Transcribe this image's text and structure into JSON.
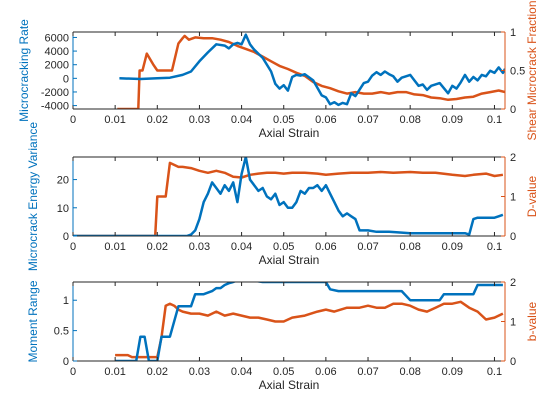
{
  "colors": {
    "left": "#0072BD",
    "right": "#D95319",
    "axis": "#262626",
    "background": "#ffffff"
  },
  "chart_data": [
    {
      "type": "line",
      "xlabel": "Axial Strain",
      "ylabel_left": "Microcracking Rate",
      "ylabel_right": "Shear Microcrack Fraction",
      "xlim": [
        0,
        0.1025
      ],
      "ylim_left": [
        -4500,
        6800
      ],
      "ylim_right": [
        0,
        1
      ],
      "xticks": [
        "0",
        "0.01",
        "0.02",
        "0.03",
        "0.04",
        "0.05",
        "0.06",
        "0.07",
        "0.08",
        "0.09",
        "0.1"
      ],
      "xtick_values": [
        0,
        0.01,
        0.02,
        0.03,
        0.04,
        0.05,
        0.06,
        0.07,
        0.08,
        0.09,
        0.1
      ],
      "yticks_left": [
        "-4000",
        "-2000",
        "0",
        "2000",
        "4000",
        "6000"
      ],
      "ytick_values_left": [
        -4000,
        -2000,
        0,
        2000,
        4000,
        6000
      ],
      "yticks_right": [
        "0",
        "0.5",
        "1"
      ],
      "ytick_values_right": [
        0,
        0.5,
        1
      ],
      "grid": false,
      "series": [
        {
          "axis": "left",
          "x": [
            0.011,
            0.016,
            0.02,
            0.023,
            0.026,
            0.028,
            0.03,
            0.032,
            0.034,
            0.036,
            0.037,
            0.038,
            0.039,
            0.04,
            0.041,
            0.042,
            0.043,
            0.045,
            0.047,
            0.048,
            0.049,
            0.05,
            0.051,
            0.052,
            0.053,
            0.054,
            0.055,
            0.057,
            0.059,
            0.06,
            0.061,
            0.062,
            0.063,
            0.064,
            0.065,
            0.066,
            0.067,
            0.069,
            0.07,
            0.071,
            0.072,
            0.073,
            0.074,
            0.075,
            0.076,
            0.077,
            0.078,
            0.079,
            0.08,
            0.081,
            0.082,
            0.083,
            0.084,
            0.085,
            0.087,
            0.089,
            0.09,
            0.091,
            0.092,
            0.093,
            0.094,
            0.095,
            0.096,
            0.097,
            0.098,
            0.099,
            0.1,
            0.101,
            0.102,
            0.1025
          ],
          "y": [
            0,
            -100,
            0,
            100,
            500,
            1000,
            2500,
            3800,
            5000,
            4800,
            4400,
            5000,
            5200,
            5000,
            6400,
            5000,
            4200,
            3000,
            1000,
            -800,
            -1500,
            -1000,
            -1800,
            200,
            500,
            400,
            600,
            -300,
            -2500,
            -2800,
            -3800,
            -3500,
            -3900,
            -3600,
            -3800,
            -2200,
            -2600,
            -700,
            -500,
            400,
            900,
            500,
            1000,
            600,
            300,
            -500,
            100,
            300,
            500,
            -300,
            -1100,
            -900,
            -1700,
            -1100,
            -700,
            -2200,
            -1100,
            -1500,
            -600,
            500,
            -500,
            200,
            -300,
            500,
            300,
            1100,
            800,
            1600,
            800,
            1400
          ]
        },
        {
          "axis": "right",
          "x": [
            0.0105,
            0.0155,
            0.0158,
            0.0165,
            0.0175,
            0.019,
            0.02,
            0.0215,
            0.0225,
            0.0235,
            0.025,
            0.026,
            0.0265,
            0.0275,
            0.029,
            0.031,
            0.033,
            0.035,
            0.037,
            0.039,
            0.041,
            0.043,
            0.045,
            0.047,
            0.049,
            0.051,
            0.053,
            0.055,
            0.057,
            0.059,
            0.061,
            0.063,
            0.065,
            0.067,
            0.069,
            0.071,
            0.073,
            0.075,
            0.077,
            0.079,
            0.081,
            0.083,
            0.085,
            0.087,
            0.089,
            0.091,
            0.093,
            0.095,
            0.097,
            0.099,
            0.101,
            0.1025
          ],
          "y": [
            0.0,
            0.0,
            0.5,
            0.5,
            0.72,
            0.58,
            0.5,
            0.5,
            0.5,
            0.5,
            0.85,
            0.92,
            0.95,
            0.9,
            0.93,
            0.92,
            0.92,
            0.9,
            0.87,
            0.82,
            0.78,
            0.74,
            0.68,
            0.62,
            0.56,
            0.52,
            0.47,
            0.43,
            0.35,
            0.3,
            0.27,
            0.23,
            0.2,
            0.22,
            0.2,
            0.2,
            0.22,
            0.2,
            0.22,
            0.22,
            0.19,
            0.18,
            0.15,
            0.14,
            0.12,
            0.13,
            0.15,
            0.16,
            0.2,
            0.22,
            0.24,
            0.22
          ]
        }
      ]
    },
    {
      "type": "line",
      "xlabel": "Axial Strain",
      "ylabel_left": "Microcrack Energy Variance",
      "ylabel_right": "D-value",
      "xlim": [
        0,
        0.1025
      ],
      "ylim_left": [
        0,
        28
      ],
      "ylim_right": [
        0,
        2
      ],
      "xticks": [
        "0",
        "0.01",
        "0.02",
        "0.03",
        "0.04",
        "0.05",
        "0.06",
        "0.07",
        "0.08",
        "0.09",
        "0.1"
      ],
      "xtick_values": [
        0,
        0.01,
        0.02,
        0.03,
        0.04,
        0.05,
        0.06,
        0.07,
        0.08,
        0.09,
        0.1
      ],
      "yticks_left": [
        "0",
        "10",
        "20"
      ],
      "ytick_values_left": [
        0,
        10,
        20
      ],
      "yticks_right": [
        "0",
        "1",
        "2"
      ],
      "ytick_values_right": [
        0,
        1,
        2
      ],
      "grid": false,
      "series": [
        {
          "axis": "left",
          "x": [
            0.0,
            0.027,
            0.028,
            0.029,
            0.03,
            0.031,
            0.032,
            0.033,
            0.034,
            0.035,
            0.036,
            0.037,
            0.038,
            0.039,
            0.04,
            0.041,
            0.042,
            0.043,
            0.044,
            0.045,
            0.046,
            0.047,
            0.048,
            0.049,
            0.05,
            0.051,
            0.052,
            0.053,
            0.054,
            0.055,
            0.056,
            0.057,
            0.058,
            0.059,
            0.06,
            0.061,
            0.062,
            0.063,
            0.064,
            0.065,
            0.066,
            0.067,
            0.068,
            0.07,
            0.072,
            0.075,
            0.078,
            0.08,
            0.085,
            0.09,
            0.092,
            0.093,
            0.094,
            0.095,
            0.096,
            0.097,
            0.098,
            0.099,
            0.1,
            0.101,
            0.102
          ],
          "y": [
            0.0,
            0.0,
            0.5,
            2.0,
            6.0,
            12.0,
            15.0,
            19.0,
            17.0,
            15.0,
            18.0,
            16.0,
            19.0,
            12.0,
            22.0,
            28.0,
            20.0,
            18.0,
            16.0,
            17.0,
            14.0,
            13.0,
            15.0,
            11.0,
            12.0,
            10.0,
            10.0,
            12.0,
            16.0,
            15.0,
            17.0,
            17.0,
            18.0,
            16.0,
            18.0,
            15.0,
            12.0,
            9.0,
            7.0,
            8.0,
            7.0,
            6.0,
            2.0,
            2.0,
            1.5,
            1.5,
            1.2,
            1.0,
            1.0,
            1.0,
            1.0,
            1.0,
            0.5,
            6.0,
            6.5,
            6.5,
            6.5,
            6.5,
            6.5,
            7.0,
            7.5
          ]
        },
        {
          "axis": "right",
          "x": [
            0.0,
            0.0195,
            0.02,
            0.021,
            0.022,
            0.023,
            0.024,
            0.025,
            0.026,
            0.028,
            0.03,
            0.032,
            0.034,
            0.036,
            0.038,
            0.04,
            0.042,
            0.044,
            0.046,
            0.048,
            0.05,
            0.052,
            0.055,
            0.058,
            0.06,
            0.063,
            0.066,
            0.07,
            0.073,
            0.076,
            0.08,
            0.083,
            0.086,
            0.09,
            0.093,
            0.095,
            0.098,
            0.1,
            0.102
          ],
          "y": [
            0.0,
            0.0,
            1.0,
            1.0,
            1.0,
            1.85,
            1.8,
            1.75,
            1.75,
            1.72,
            1.65,
            1.6,
            1.65,
            1.6,
            1.5,
            1.48,
            1.55,
            1.58,
            1.6,
            1.6,
            1.58,
            1.6,
            1.6,
            1.58,
            1.55,
            1.58,
            1.6,
            1.6,
            1.62,
            1.6,
            1.62,
            1.6,
            1.6,
            1.55,
            1.52,
            1.55,
            1.58,
            1.52,
            1.55
          ]
        }
      ]
    },
    {
      "type": "line",
      "xlabel": "Axial Strain",
      "ylabel_left": "Moment Range",
      "ylabel_right": "b-value",
      "xlim": [
        0,
        0.1025
      ],
      "ylim_left": [
        0,
        1.3
      ],
      "ylim_right": [
        0,
        2
      ],
      "xticks": [
        "0",
        "0.01",
        "0.02",
        "0.03",
        "0.04",
        "0.05",
        "0.06",
        "0.07",
        "0.08",
        "0.09",
        "0.1"
      ],
      "xtick_values": [
        0,
        0.01,
        0.02,
        0.03,
        0.04,
        0.05,
        0.06,
        0.07,
        0.08,
        0.09,
        0.1
      ],
      "yticks_left": [
        "0",
        "0.5",
        "1"
      ],
      "ytick_values_left": [
        0,
        0.5,
        1
      ],
      "yticks_right": [
        "0",
        "1",
        "2"
      ],
      "ytick_values_right": [
        0,
        1,
        2
      ],
      "grid": false,
      "series": [
        {
          "axis": "left",
          "x": [
            0.01,
            0.015,
            0.016,
            0.017,
            0.018,
            0.019,
            0.02,
            0.021,
            0.022,
            0.023,
            0.025,
            0.026,
            0.027,
            0.028,
            0.029,
            0.03,
            0.031,
            0.033,
            0.034,
            0.035,
            0.036,
            0.037,
            0.038,
            0.04,
            0.045,
            0.05,
            0.057,
            0.06,
            0.061,
            0.063,
            0.065,
            0.07,
            0.072,
            0.075,
            0.078,
            0.08,
            0.083,
            0.085,
            0.087,
            0.088,
            0.09,
            0.093,
            0.095,
            0.096,
            0.1,
            0.102
          ],
          "y": [
            0.0,
            0.0,
            0.4,
            0.4,
            0.0,
            0.0,
            0.0,
            0.4,
            0.4,
            0.4,
            0.9,
            0.9,
            0.9,
            0.9,
            1.1,
            1.1,
            1.1,
            1.15,
            1.2,
            1.2,
            1.25,
            1.28,
            1.3,
            1.35,
            1.3,
            1.3,
            1.3,
            1.3,
            1.18,
            1.15,
            1.15,
            1.15,
            1.15,
            1.15,
            1.15,
            1.0,
            1.0,
            1.0,
            1.0,
            1.1,
            1.1,
            1.1,
            1.1,
            1.25,
            1.25,
            1.25
          ]
        },
        {
          "axis": "right",
          "x": [
            0.01,
            0.013,
            0.014,
            0.016,
            0.017,
            0.018,
            0.02,
            0.021,
            0.022,
            0.023,
            0.024,
            0.025,
            0.026,
            0.028,
            0.03,
            0.032,
            0.034,
            0.036,
            0.038,
            0.04,
            0.042,
            0.044,
            0.046,
            0.048,
            0.05,
            0.052,
            0.055,
            0.058,
            0.06,
            0.062,
            0.065,
            0.068,
            0.07,
            0.072,
            0.074,
            0.076,
            0.078,
            0.08,
            0.082,
            0.084,
            0.086,
            0.088,
            0.09,
            0.092,
            0.094,
            0.096,
            0.098,
            0.1,
            0.102
          ],
          "y": [
            0.15,
            0.15,
            0.1,
            0.1,
            0.1,
            0.1,
            0.1,
            0.6,
            1.4,
            1.45,
            1.4,
            1.3,
            1.25,
            1.2,
            1.2,
            1.15,
            1.25,
            1.15,
            1.2,
            1.15,
            1.1,
            1.1,
            1.05,
            1.0,
            1.0,
            1.1,
            1.15,
            1.25,
            1.3,
            1.25,
            1.35,
            1.35,
            1.4,
            1.35,
            1.35,
            1.45,
            1.45,
            1.4,
            1.3,
            1.25,
            1.35,
            1.45,
            1.45,
            1.5,
            1.35,
            1.25,
            1.05,
            1.1,
            1.2
          ]
        }
      ]
    }
  ]
}
